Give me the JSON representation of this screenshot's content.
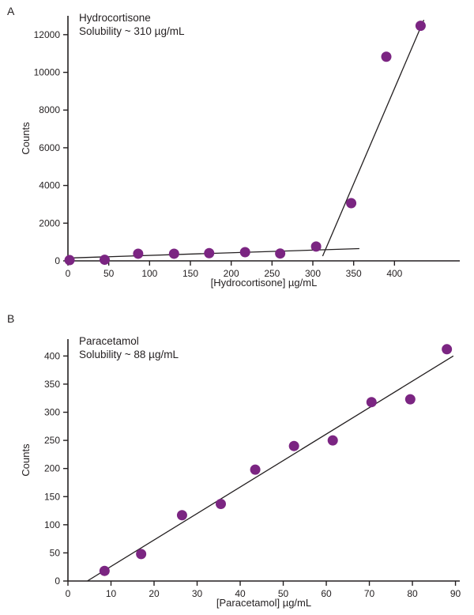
{
  "figure": {
    "background": "#ffffff",
    "text_color": "#231f20",
    "accent_color": "#7b2582"
  },
  "panels": [
    {
      "label": "A"
    },
    {
      "label": "B"
    }
  ],
  "chart_data": [
    {
      "type": "scatter",
      "title": "Hydrocortisone",
      "subtitle": "Solubility ~ 310 µg/mL",
      "xlabel": "[Hydrocortisone] µg/mL",
      "ylabel": "Counts",
      "xlim": [
        0,
        480
      ],
      "ylim": [
        0,
        13000
      ],
      "xticks": [
        0,
        50,
        100,
        150,
        200,
        250,
        300,
        350,
        400
      ],
      "yticks": [
        0,
        2000,
        4000,
        6000,
        8000,
        10000,
        12000
      ],
      "grid": false,
      "legend": "none",
      "marker_color": "#7b2582",
      "line_color": "#231f20",
      "points": [
        [
          2,
          40
        ],
        [
          45,
          60
        ],
        [
          86,
          380
        ],
        [
          130,
          380
        ],
        [
          173,
          410
        ],
        [
          217,
          460
        ],
        [
          260,
          390
        ],
        [
          304,
          760
        ],
        [
          347,
          3060
        ],
        [
          390,
          10830
        ],
        [
          432,
          12470
        ]
      ],
      "fit_lines": [
        {
          "x1": 0,
          "y1": 150,
          "x2": 357,
          "y2": 650
        },
        {
          "x1": 312,
          "y1": 250,
          "x2": 436,
          "y2": 12780
        }
      ]
    },
    {
      "type": "scatter",
      "title": "Paracetamol",
      "subtitle": "Solubility ~ 88 µg/mL",
      "xlabel": "[Paracetamol] µg/mL",
      "ylabel": "Counts",
      "xlim": [
        0,
        91
      ],
      "ylim": [
        0,
        430
      ],
      "xticks": [
        0,
        10,
        20,
        30,
        40,
        50,
        60,
        70,
        80,
        90
      ],
      "yticks": [
        0,
        50,
        100,
        150,
        200,
        250,
        300,
        350,
        400
      ],
      "grid": false,
      "legend": "none",
      "marker_color": "#7b2582",
      "line_color": "#231f20",
      "points": [
        [
          8.5,
          18
        ],
        [
          17,
          48
        ],
        [
          26.5,
          117
        ],
        [
          35.5,
          137
        ],
        [
          43.5,
          198
        ],
        [
          52.5,
          240
        ],
        [
          61.5,
          250
        ],
        [
          70.5,
          318
        ],
        [
          79.5,
          323
        ],
        [
          88,
          412
        ]
      ],
      "fit_lines": [
        {
          "x1": 4.5,
          "y1": 0,
          "x2": 89.5,
          "y2": 400
        }
      ]
    }
  ]
}
